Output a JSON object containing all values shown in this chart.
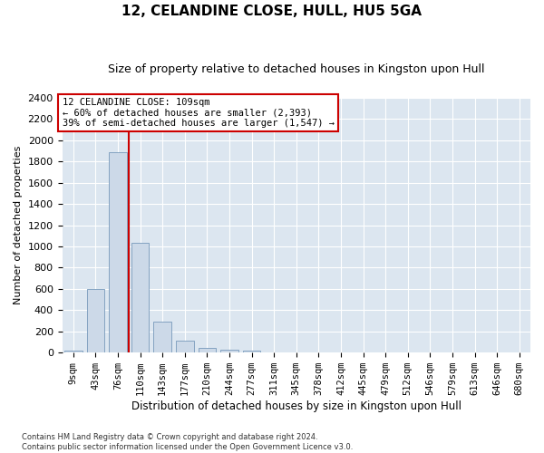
{
  "title": "12, CELANDINE CLOSE, HULL, HU5 5GA",
  "subtitle": "Size of property relative to detached houses in Kingston upon Hull",
  "xlabel": "Distribution of detached houses by size in Kingston upon Hull",
  "ylabel": "Number of detached properties",
  "footer": "Contains HM Land Registry data © Crown copyright and database right 2024.\nContains public sector information licensed under the Open Government Licence v3.0.",
  "categories": [
    "9sqm",
    "43sqm",
    "76sqm",
    "110sqm",
    "143sqm",
    "177sqm",
    "210sqm",
    "244sqm",
    "277sqm",
    "311sqm",
    "345sqm",
    "378sqm",
    "412sqm",
    "445sqm",
    "479sqm",
    "512sqm",
    "546sqm",
    "579sqm",
    "613sqm",
    "646sqm",
    "680sqm"
  ],
  "values": [
    15,
    600,
    1890,
    1035,
    290,
    115,
    45,
    25,
    20,
    0,
    0,
    0,
    0,
    0,
    0,
    0,
    0,
    0,
    0,
    0,
    0
  ],
  "bar_color": "#ccd9e8",
  "bar_edge_color": "#7799bb",
  "background_color": "#dce6f0",
  "grid_color": "#ffffff",
  "vline_color": "#cc0000",
  "vline_x_index": 2.5,
  "annotation_text": "12 CELANDINE CLOSE: 109sqm\n← 60% of detached houses are smaller (2,393)\n39% of semi-detached houses are larger (1,547) →",
  "annotation_box_edgecolor": "#cc0000",
  "ylim": [
    0,
    2400
  ],
  "yticks": [
    0,
    200,
    400,
    600,
    800,
    1000,
    1200,
    1400,
    1600,
    1800,
    2000,
    2200,
    2400
  ],
  "title_fontsize": 11,
  "subtitle_fontsize": 9,
  "ylabel_fontsize": 8,
  "xlabel_fontsize": 8.5,
  "tick_fontsize": 8,
  "xtick_fontsize": 7.5,
  "annotation_fontsize": 7.5,
  "footer_fontsize": 6
}
